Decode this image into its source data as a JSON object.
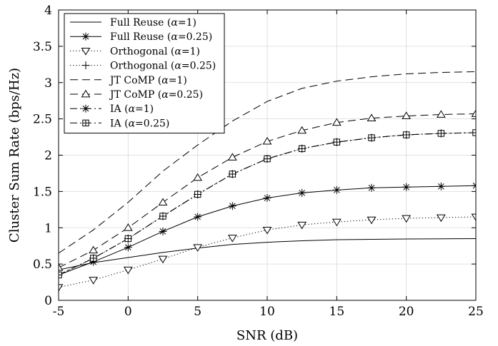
{
  "chart_data": {
    "type": "line",
    "xlabel": "SNR (dB)",
    "ylabel": "Cluster Sum Rate (bps/Hz)",
    "xlim": [
      -5,
      25
    ],
    "ylim": [
      0,
      4
    ],
    "x_ticks": [
      "-5",
      "0",
      "5",
      "10",
      "15",
      "20",
      "25"
    ],
    "y_ticks": [
      "0",
      "0.5",
      "1",
      "1.5",
      "2",
      "2.5",
      "3",
      "3.5",
      "4"
    ],
    "grid": true,
    "legend_position": "top-left",
    "x": [
      -5,
      -2.5,
      0,
      2.5,
      5,
      7.5,
      10,
      12.5,
      15,
      17.5,
      20,
      22.5,
      25
    ],
    "series": [
      {
        "name": "Full Reuse (α=1)",
        "line": "solid",
        "marker": "none",
        "values": [
          0.42,
          0.52,
          0.59,
          0.66,
          0.72,
          0.77,
          0.8,
          0.82,
          0.835,
          0.84,
          0.845,
          0.848,
          0.85
        ]
      },
      {
        "name": "Full Reuse (α=0.25)",
        "line": "solid",
        "marker": "asterisk",
        "values": [
          0.35,
          0.53,
          0.73,
          0.95,
          1.15,
          1.3,
          1.41,
          1.48,
          1.52,
          1.55,
          1.56,
          1.57,
          1.58
        ]
      },
      {
        "name": "Orthogonal (α=1)",
        "line": "dotted",
        "marker": "triangle-down",
        "values": [
          0.18,
          0.28,
          0.42,
          0.57,
          0.73,
          0.86,
          0.97,
          1.04,
          1.08,
          1.11,
          1.13,
          1.14,
          1.15
        ]
      },
      {
        "name": "Orthogonal (α=0.25)",
        "line": "dotted",
        "marker": "plus",
        "values": [
          0.35,
          0.58,
          0.85,
          1.16,
          1.46,
          1.74,
          1.95,
          2.09,
          2.18,
          2.24,
          2.28,
          2.3,
          2.31
        ]
      },
      {
        "name": "JT CoMP (α=1)",
        "line": "dashed",
        "marker": "none",
        "values": [
          0.65,
          0.97,
          1.35,
          1.78,
          2.14,
          2.47,
          2.74,
          2.92,
          3.02,
          3.08,
          3.12,
          3.14,
          3.15
        ]
      },
      {
        "name": "JT CoMP (α=0.25)",
        "line": "dashed",
        "marker": "triangle-up",
        "values": [
          0.45,
          0.69,
          1.0,
          1.35,
          1.69,
          1.97,
          2.19,
          2.34,
          2.45,
          2.51,
          2.54,
          2.56,
          2.57
        ]
      },
      {
        "name": "IA (α=1)",
        "line": "dashdot",
        "marker": "asterisk",
        "values": [
          0.35,
          0.58,
          0.85,
          1.16,
          1.46,
          1.74,
          1.95,
          2.09,
          2.18,
          2.24,
          2.28,
          2.3,
          2.31
        ]
      },
      {
        "name": "IA (α=0.25)",
        "line": "dashdot",
        "marker": "square-plus",
        "values": [
          0.35,
          0.58,
          0.85,
          1.16,
          1.46,
          1.74,
          1.95,
          2.09,
          2.18,
          2.24,
          2.28,
          2.3,
          2.31
        ]
      }
    ],
    "legend_labels": [
      {
        "prefix": "Full Reuse (",
        "greek": "α",
        "suffix": "=1)"
      },
      {
        "prefix": "Full Reuse (",
        "greek": "α",
        "suffix": "=0.25)"
      },
      {
        "prefix": "Orthogonal (",
        "greek": "α",
        "suffix": "=1)"
      },
      {
        "prefix": "Orthogonal (",
        "greek": "α",
        "suffix": "=0.25)"
      },
      {
        "prefix": "JT CoMP (",
        "greek": "α",
        "suffix": "=1)"
      },
      {
        "prefix": "JT CoMP (",
        "greek": "α",
        "suffix": "=0.25)"
      },
      {
        "prefix": "IA (",
        "greek": "α",
        "suffix": "=1)"
      },
      {
        "prefix": "IA (",
        "greek": "α",
        "suffix": "=0.25)"
      }
    ]
  }
}
